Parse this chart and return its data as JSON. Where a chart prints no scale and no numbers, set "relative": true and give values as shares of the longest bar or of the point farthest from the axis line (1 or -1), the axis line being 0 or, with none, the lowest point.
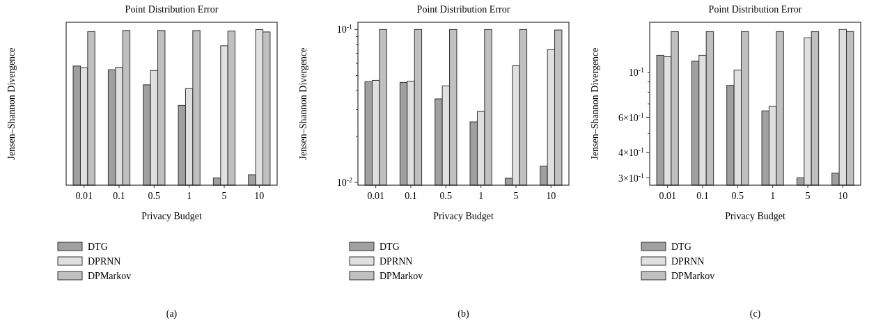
{
  "chart_data": [
    {
      "type": "bar",
      "title": "Point Distribution Error",
      "xlabel": "Privacy Budget",
      "ylabel": "Jensen–Shannon Divergence",
      "categories": [
        "0.01",
        "0.1",
        "0.5",
        "1",
        "5",
        "10"
      ],
      "relative": true,
      "legend": "bottom",
      "annotations": [
        "(a)"
      ],
      "series": [
        {
          "name": "DTG",
          "color": "#a0a0a0",
          "values": [
            0.766,
            0.742,
            0.645,
            0.513,
            0.046,
            0.067
          ]
        },
        {
          "name": "DPRNN",
          "color": "#e0e0e0",
          "values": [
            0.754,
            0.757,
            0.737,
            0.621,
            0.896,
            1
          ]
        },
        {
          "name": "DPMarkov",
          "color": "#c0c0c0",
          "values": [
            0.987,
            0.994,
            0.994,
            0.994,
            0.991,
            0.985
          ]
        }
      ]
    },
    {
      "type": "bar",
      "title": "Point Distribution Error",
      "xlabel": "Privacy Budget",
      "ylabel": "Jensen–Shannon Divergence",
      "categories": [
        "0.01",
        "0.1",
        "0.5",
        "1",
        "5",
        "10"
      ],
      "log": true,
      "ylim": [
        0.0096,
        0.1115
      ],
      "yticks": [
        {
          "value": 0.01,
          "label": "10$^{-2}$"
        },
        {
          "value": 0.02,
          "label": null
        },
        {
          "value": 0.03,
          "label": null
        },
        {
          "value": 0.04,
          "label": null
        },
        {
          "value": 0.05,
          "label": null
        },
        {
          "value": 0.06,
          "label": null
        },
        {
          "value": 0.07,
          "label": null
        },
        {
          "value": 0.08,
          "label": null
        },
        {
          "value": 0.09,
          "label": null
        },
        {
          "value": 0.1,
          "label": "10$^{-1}$"
        }
      ],
      "legend": "bottom",
      "annotations": [
        "(b)"
      ],
      "series": [
        {
          "name": "DTG",
          "color": "#a0a0a0",
          "values": [
            0.0456,
            0.0451,
            0.0352,
            0.0249,
            0.01065,
            0.0128
          ]
        },
        {
          "name": "DPRNN",
          "color": "#e0e0e0",
          "values": [
            0.0465,
            0.0459,
            0.0428,
            0.0291,
            0.0579,
            0.0738
          ]
        },
        {
          "name": "DPMarkov",
          "color": "#c0c0c0",
          "values": [
            0.1,
            0.1,
            0.1,
            0.1,
            0.1,
            0.0993
          ]
        }
      ]
    },
    {
      "type": "bar",
      "title": "Point Distribution Error",
      "xlabel": "Privacy Budget",
      "ylabel": "Jensen–Shannon Divergence",
      "categories": [
        "0.01",
        "0.1",
        "0.5",
        "1",
        "5",
        "10"
      ],
      "log": true,
      "ylim": [
        0.276,
        1.78
      ],
      "yticks": [
        {
          "value": 0.3,
          "label": "3×10$^{-1}$"
        },
        {
          "value": 0.4,
          "label": "4×10$^{-1}$"
        },
        {
          "value": 0.5,
          "label": null
        },
        {
          "value": 0.6,
          "label": "6×10$^{-1}$"
        },
        {
          "value": 0.7,
          "label": null
        },
        {
          "value": 0.8,
          "label": null
        },
        {
          "value": 0.9,
          "label": null
        },
        {
          "value": 1,
          "label": null
        }
      ],
      "legend": "bottom",
      "annotations": [
        "(c)",
        "10$^{-1}$"
      ],
      "series": [
        {
          "name": "DTG",
          "color": "#a0a0a0",
          "values": [
            1.22,
            1.14,
            0.864,
            0.646,
            0.3,
            0.317
          ]
        },
        {
          "name": "DPRNN",
          "color": "#e0e0e0",
          "values": [
            1.2,
            1.22,
            1.03,
            0.682,
            1.49,
            1.64
          ]
        },
        {
          "name": "DPMarkov",
          "color": "#c0c0c0",
          "values": [
            1.6,
            1.6,
            1.6,
            1.6,
            1.6,
            1.6
          ]
        }
      ]
    }
  ]
}
